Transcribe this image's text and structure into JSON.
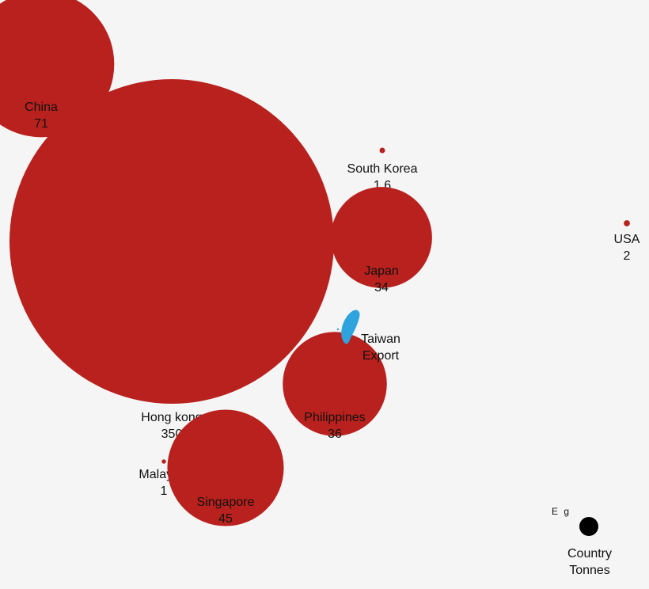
{
  "chart_data": {
    "type": "bubble",
    "title": "",
    "units": "Tonnes",
    "bubbles": [
      {
        "name": "China",
        "value": "71",
        "value_num": 71
      },
      {
        "name": "Hong kong",
        "value": "350",
        "value_num": 350
      },
      {
        "name": "South Korea",
        "value": "1.6",
        "value_num": 1.6
      },
      {
        "name": "Japan",
        "value": "34",
        "value_num": 34
      },
      {
        "name": "USA",
        "value": "2",
        "value_num": 2
      },
      {
        "name": "Philippines",
        "value": "36",
        "value_num": 36
      },
      {
        "name": "Malaysia",
        "value": "1",
        "value_num": 1
      },
      {
        "name": "Singapore",
        "value": "45",
        "value_num": 45
      }
    ],
    "origin": {
      "line1": "Taiwan",
      "line2": "Export"
    },
    "legend": {
      "eg": "E g",
      "line1": "Country",
      "line2": "Tonnes"
    },
    "colors": {
      "bubble": "#b8211d",
      "origin": "#2fa3dd",
      "legend_dot": "#000000",
      "background": "#f5f5f5"
    }
  }
}
